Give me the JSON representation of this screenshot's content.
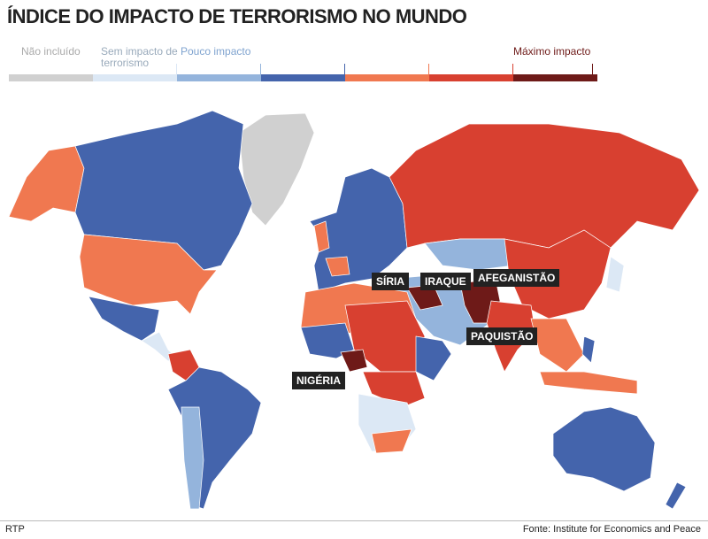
{
  "title": "ÍNDICE DO IMPACTO DE TERRORISMO NO MUNDO",
  "legend": {
    "labels": [
      "Não incluído",
      "Sem impacto de terrorismo",
      "Pouco impacto",
      "Máximo impacto"
    ],
    "colors": [
      "#d0d0d0",
      "#dce8f5",
      "#94b4dc",
      "#4464ac",
      "#f07850",
      "#d84030",
      "#6e1a18"
    ]
  },
  "country_labels": [
    "SÍRIA",
    "IRAQUE",
    "AFEGANISTÃO",
    "PAQUISTÃO",
    "NIGÉRIA"
  ],
  "footer": {
    "left": "RTP",
    "right": "Fonte: Institute for Economics and Peace"
  }
}
